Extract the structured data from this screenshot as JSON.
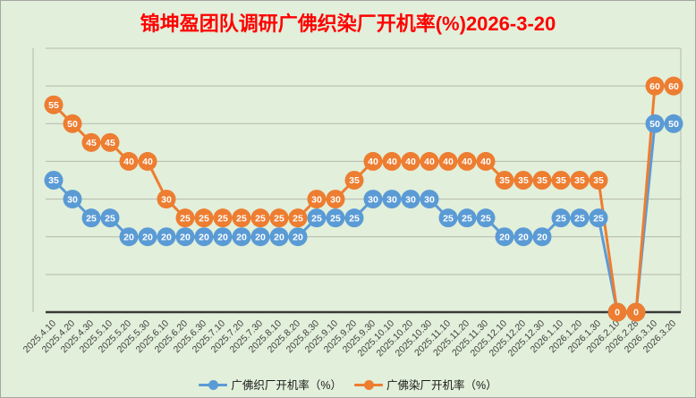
{
  "page": {
    "background": "#e2efda",
    "border_color": "#a6a6a6"
  },
  "chart_data": {
    "type": "line",
    "title": "锦坤盈团队调研广佛织染厂开机率(%)2026-3-20",
    "title_color": "#ff0000",
    "categories": [
      "2025.4.10",
      "2025.4.20",
      "2025.4.30",
      "2025.5.10",
      "2025.5.20",
      "2025.5.30",
      "2025.6.10",
      "2025.6.20",
      "2025.6.30",
      "2025.7.10",
      "2025.7.20",
      "2025.7.30",
      "2025.8.10",
      "2025.8.20",
      "2025.8.30",
      "2025.9.10",
      "2025.9.20",
      "2025.9.30",
      "2025.10.10",
      "2025.10.20",
      "2025.10.30",
      "2025.11.10",
      "2025.11.20",
      "2025.11.30",
      "2025.12.10",
      "2025.12.20",
      "2025.12.30",
      "2026.1.10",
      "2026.1.20",
      "2026.1.30",
      "2026.2.10",
      "2026.2.28",
      "2026.3.10",
      "2026.3.20"
    ],
    "series": [
      {
        "name": "广佛织厂开机率（%）",
        "color": "#5b9bd5",
        "values": [
          35,
          30,
          25,
          25,
          20,
          20,
          20,
          20,
          20,
          20,
          20,
          20,
          20,
          20,
          25,
          25,
          25,
          30,
          30,
          30,
          30,
          25,
          25,
          25,
          20,
          20,
          20,
          25,
          25,
          25,
          0,
          0,
          50,
          50
        ]
      },
      {
        "name": "广佛染厂开机率（%）",
        "color": "#ed7d31",
        "values": [
          55,
          50,
          45,
          45,
          40,
          40,
          30,
          25,
          25,
          25,
          25,
          25,
          25,
          25,
          30,
          30,
          35,
          40,
          40,
          40,
          40,
          40,
          40,
          40,
          35,
          35,
          35,
          35,
          35,
          35,
          0,
          0,
          60,
          60
        ]
      }
    ],
    "ylim": [
      0,
      70
    ],
    "y_major_unit": 10,
    "grid": "horizontal",
    "gridline_color": "#b3b9ae",
    "axis_line_color": "#3a3a3a",
    "x_label_color": "#404040",
    "x_label_rotation": -45,
    "data_labels": "white bold numbers centered in round markers",
    "legend_position": "bottom"
  }
}
